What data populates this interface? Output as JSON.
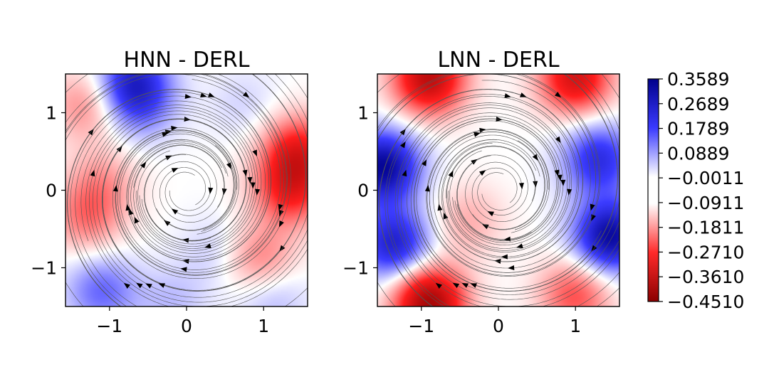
{
  "chart_data": [
    {
      "type": "heatmap",
      "title": "HNN - DERL",
      "xlabel": "",
      "ylabel": "",
      "xlim": [
        -1.571,
        1.571
      ],
      "ylim": [
        -1.5,
        1.5
      ],
      "xticks": [
        -1,
        0,
        1
      ],
      "yticks": [
        -1,
        0,
        1
      ],
      "xtick_labels": [
        "−1",
        "0",
        "1"
      ],
      "ytick_labels": [
        "−1",
        "0",
        "1"
      ],
      "field_features": [
        {
          "x": -0.7,
          "y": 1.4,
          "value": 0.22
        },
        {
          "x": -0.6,
          "y": 1.1,
          "value": 0.1
        },
        {
          "x": 0.75,
          "y": 1.1,
          "value": 0.04
        },
        {
          "x": -1.3,
          "y": 1.1,
          "value": -0.12
        },
        {
          "x": 1.45,
          "y": 0.5,
          "value": -0.24
        },
        {
          "x": 1.35,
          "y": 0.0,
          "value": -0.22
        },
        {
          "x": -1.1,
          "y": 0.1,
          "value": -0.09
        },
        {
          "x": -1.3,
          "y": -0.35,
          "value": -0.13
        },
        {
          "x": 0.95,
          "y": -0.9,
          "value": -0.14
        },
        {
          "x": 0.4,
          "y": -0.8,
          "value": 0.05
        },
        {
          "x": -1.1,
          "y": -1.3,
          "value": 0.14
        },
        {
          "x": 1.1,
          "y": -1.35,
          "value": 0.08
        },
        {
          "x": -0.2,
          "y": -1.45,
          "value": 0.06
        }
      ],
      "grid": false
    },
    {
      "type": "heatmap",
      "title": "LNN - DERL",
      "xlabel": "",
      "ylabel": "",
      "xlim": [
        -1.571,
        1.571
      ],
      "ylim": [
        -1.5,
        1.5
      ],
      "xticks": [
        -1,
        0,
        1
      ],
      "yticks": [
        -1,
        0,
        1
      ],
      "xtick_labels": [
        "−1",
        "0",
        "1"
      ],
      "ytick_labels": [
        "−1",
        "0",
        "1"
      ],
      "field_features": [
        {
          "x": -1.5,
          "y": 0.3,
          "value": 0.34
        },
        {
          "x": -1.35,
          "y": -0.7,
          "value": 0.26
        },
        {
          "x": 1.45,
          "y": -0.6,
          "value": 0.33
        },
        {
          "x": 1.3,
          "y": 0.4,
          "value": 0.22
        },
        {
          "x": -0.9,
          "y": 1.45,
          "value": -0.35
        },
        {
          "x": 1.0,
          "y": 1.45,
          "value": -0.3
        },
        {
          "x": -0.9,
          "y": -1.45,
          "value": -0.4
        },
        {
          "x": 1.0,
          "y": -1.35,
          "value": -0.18
        },
        {
          "x": -0.4,
          "y": -0.4,
          "value": -0.08
        }
      ],
      "grid": false
    }
  ],
  "colorbar": {
    "colormap": "seismic_r",
    "min": -0.451,
    "max": 0.3589,
    "tick_labels": [
      "0.3589",
      "0.2689",
      "0.1789",
      "0.0889",
      "−0.0011",
      "−0.0911",
      "−0.1811",
      "−0.2710",
      "−0.3610",
      "−0.4510"
    ],
    "tick_values": [
      0.3589,
      0.2689,
      0.1789,
      0.0889,
      -0.0011,
      -0.0911,
      -0.1811,
      -0.271,
      -0.361,
      -0.451
    ]
  },
  "colors": {
    "high": "#00008b",
    "mid": "#ffffff",
    "low": "#8b0000",
    "streamline": "#555555"
  }
}
